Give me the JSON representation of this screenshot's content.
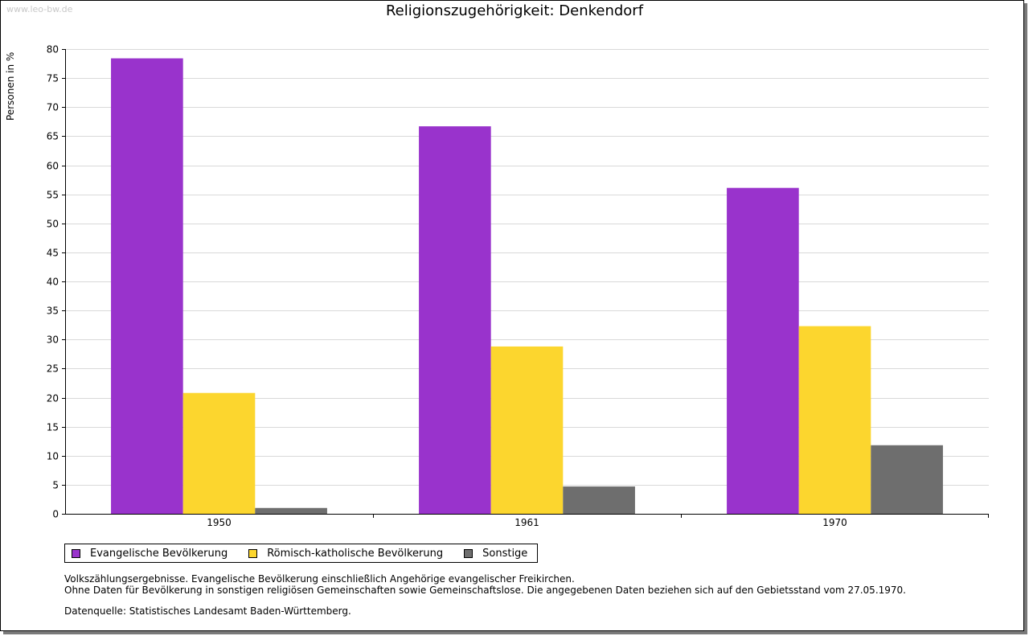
{
  "watermark": "www.leo-bw.de",
  "colors": {
    "evangelisch": "#9933cc",
    "katholisch": "#fcd62e",
    "sonstige": "#6e6e6e",
    "grid": "#d9d9d9"
  },
  "chart_data": {
    "type": "bar",
    "title": "Religionszugehörigkeit: Denkendorf",
    "xlabel": "",
    "ylabel": "Personen in %",
    "ylim": [
      0,
      80
    ],
    "yticks": [
      0,
      5,
      10,
      15,
      20,
      25,
      30,
      35,
      40,
      45,
      50,
      55,
      60,
      65,
      70,
      75,
      80
    ],
    "grid": true,
    "legend_position": "bottom",
    "categories": [
      "1950",
      "1961",
      "1970"
    ],
    "series": [
      {
        "name": "Evangelische Bevölkerung",
        "color": "#9933cc",
        "values": [
          78.4,
          66.7,
          56.1
        ]
      },
      {
        "name": "Römisch-katholische Bevölkerung",
        "color": "#fcd62e",
        "values": [
          20.8,
          28.8,
          32.3
        ]
      },
      {
        "name": "Sonstige",
        "color": "#6e6e6e",
        "values": [
          1.0,
          4.7,
          11.8
        ]
      }
    ]
  },
  "notes": {
    "line1": "Volkszählungsergebnisse. Evangelische Bevölkerung einschließlich Angehörige evangelischer Freikirchen.",
    "line2": "Ohne Daten für Bevölkerung in sonstigen religiösen Gemeinschaften sowie Gemeinschaftslose. Die angegebenen Daten beziehen sich auf den Gebietsstand vom 27.05.1970.",
    "source": "Datenquelle: Statistisches Landesamt Baden-Württemberg."
  }
}
